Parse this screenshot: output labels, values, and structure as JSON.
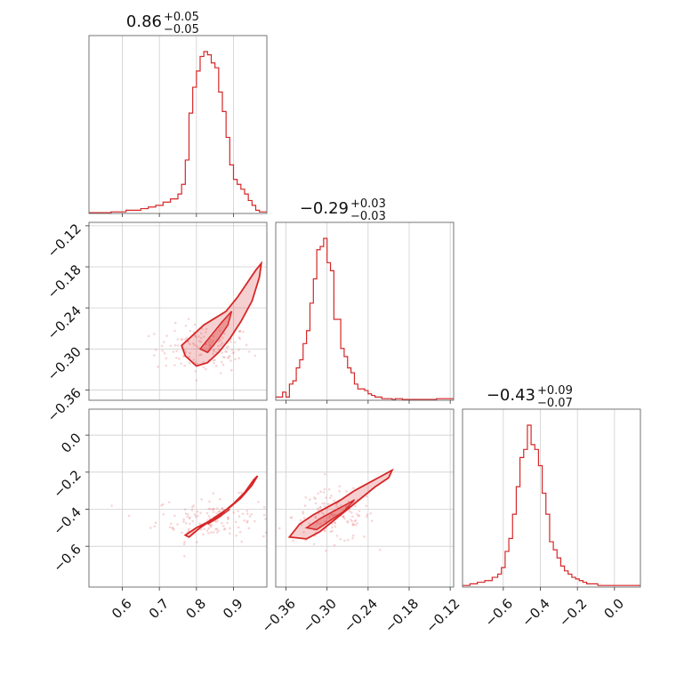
{
  "chart_data": {
    "type": "corner",
    "color": "#d62728",
    "grid": true,
    "params": [
      {
        "median": "0.86",
        "plus": "+0.05",
        "minus": "−0.05",
        "range": [
          0.51,
          0.99
        ],
        "ticks": [
          0.6,
          0.7,
          0.8,
          0.9
        ],
        "tick_labels": [
          "0.6",
          "0.7",
          "0.8",
          "0.9"
        ],
        "hist_x": [
          0.51,
          0.53,
          0.55,
          0.57,
          0.59,
          0.61,
          0.63,
          0.65,
          0.67,
          0.69,
          0.71,
          0.73,
          0.75,
          0.76,
          0.77,
          0.78,
          0.79,
          0.8,
          0.81,
          0.82,
          0.83,
          0.84,
          0.85,
          0.86,
          0.87,
          0.88,
          0.89,
          0.9,
          0.91,
          0.92,
          0.93,
          0.94,
          0.95,
          0.96,
          0.97,
          0.98,
          0.99
        ],
        "hist_y": [
          0.005,
          0.005,
          0.005,
          0.01,
          0.01,
          0.02,
          0.02,
          0.03,
          0.04,
          0.05,
          0.07,
          0.09,
          0.12,
          0.18,
          0.33,
          0.62,
          0.78,
          0.88,
          0.97,
          1.0,
          0.98,
          0.93,
          0.9,
          0.75,
          0.63,
          0.47,
          0.3,
          0.21,
          0.18,
          0.15,
          0.12,
          0.08,
          0.05,
          0.02,
          0.01,
          0.01
        ]
      },
      {
        "median": "−0.29",
        "plus": "+0.03",
        "minus": "−0.03",
        "range": [
          -0.375,
          -0.115
        ],
        "ticks": [
          -0.36,
          -0.3,
          -0.24,
          -0.18,
          -0.12
        ],
        "tick_labels": [
          "−0.36",
          "−0.30",
          "−0.24",
          "−0.18",
          "−0.12"
        ],
        "hist_x": [
          -0.375,
          -0.37,
          -0.365,
          -0.36,
          -0.355,
          -0.35,
          -0.345,
          -0.34,
          -0.335,
          -0.33,
          -0.325,
          -0.32,
          -0.315,
          -0.31,
          -0.305,
          -0.3,
          -0.295,
          -0.29,
          -0.285,
          -0.28,
          -0.275,
          -0.27,
          -0.265,
          -0.26,
          -0.255,
          -0.25,
          -0.245,
          -0.24,
          -0.235,
          -0.23,
          -0.225,
          -0.22,
          -0.215,
          -0.21,
          -0.205,
          -0.2,
          -0.19,
          -0.18,
          -0.17,
          -0.16,
          -0.15,
          -0.14,
          -0.13,
          -0.12,
          -0.115
        ],
        "hist_y": [
          0.02,
          0.02,
          0.05,
          0.02,
          0.1,
          0.12,
          0.2,
          0.25,
          0.35,
          0.43,
          0.6,
          0.75,
          0.93,
          0.95,
          1.0,
          0.85,
          0.8,
          0.5,
          0.5,
          0.32,
          0.27,
          0.2,
          0.17,
          0.1,
          0.07,
          0.07,
          0.06,
          0.04,
          0.03,
          0.02,
          0.02,
          0.01,
          0.01,
          0.01,
          0.005,
          0.01,
          0.005,
          0.005,
          0.005,
          0.005,
          0.005,
          0.01,
          0.01,
          0.01
        ]
      },
      {
        "median": "−0.43",
        "plus": "+0.09",
        "minus": "−0.07",
        "range": [
          -0.82,
          0.14
        ],
        "ticks": [
          -0.6,
          -0.4,
          -0.2,
          0.0
        ],
        "tick_labels": [
          "−0.6",
          "−0.4",
          "−0.2",
          "0.0"
        ],
        "hist_x": [
          -0.82,
          -0.78,
          -0.74,
          -0.7,
          -0.66,
          -0.63,
          -0.61,
          -0.59,
          -0.57,
          -0.55,
          -0.53,
          -0.51,
          -0.49,
          -0.47,
          -0.45,
          -0.43,
          -0.41,
          -0.39,
          -0.37,
          -0.35,
          -0.33,
          -0.31,
          -0.29,
          -0.27,
          -0.25,
          -0.23,
          -0.21,
          -0.19,
          -0.17,
          -0.15,
          -0.13,
          -0.11,
          -0.09,
          -0.07,
          -0.05,
          -0.03,
          -0.01,
          0.02,
          0.06,
          0.1,
          0.14
        ],
        "hist_y": [
          0.01,
          0.02,
          0.03,
          0.04,
          0.06,
          0.08,
          0.12,
          0.22,
          0.3,
          0.45,
          0.62,
          0.8,
          0.85,
          1.0,
          0.88,
          0.85,
          0.75,
          0.58,
          0.45,
          0.28,
          0.23,
          0.18,
          0.13,
          0.1,
          0.08,
          0.06,
          0.05,
          0.04,
          0.03,
          0.02,
          0.02,
          0.02,
          0.01,
          0.01,
          0.01,
          0.01,
          0.01,
          0.01,
          0.01,
          0.01
        ]
      }
    ],
    "pairs": [
      {
        "row": 1,
        "col": 0,
        "contour_outer": [
          [
            0.76,
            -0.295
          ],
          [
            0.79,
            -0.28
          ],
          [
            0.82,
            -0.265
          ],
          [
            0.85,
            -0.255
          ],
          [
            0.88,
            -0.245
          ],
          [
            0.91,
            -0.225
          ],
          [
            0.935,
            -0.205
          ],
          [
            0.96,
            -0.185
          ],
          [
            0.975,
            -0.175
          ],
          [
            0.97,
            -0.195
          ],
          [
            0.95,
            -0.23
          ],
          [
            0.92,
            -0.26
          ],
          [
            0.89,
            -0.285
          ],
          [
            0.86,
            -0.305
          ],
          [
            0.83,
            -0.32
          ],
          [
            0.8,
            -0.325
          ],
          [
            0.77,
            -0.31
          ]
        ],
        "contour_inner": [
          [
            0.81,
            -0.3
          ],
          [
            0.84,
            -0.28
          ],
          [
            0.87,
            -0.26
          ],
          [
            0.895,
            -0.245
          ],
          [
            0.885,
            -0.265
          ],
          [
            0.86,
            -0.285
          ],
          [
            0.83,
            -0.305
          ]
        ],
        "scatter_center": [
          0.82,
          -0.3
        ],
        "scatter_spread": [
          0.13,
          0.035
        ]
      },
      {
        "row": 2,
        "col": 0,
        "contour_outer": [
          [
            0.77,
            -0.54
          ],
          [
            0.8,
            -0.5
          ],
          [
            0.83,
            -0.47
          ],
          [
            0.86,
            -0.43
          ],
          [
            0.89,
            -0.39
          ],
          [
            0.92,
            -0.34
          ],
          [
            0.95,
            -0.27
          ],
          [
            0.965,
            -0.22
          ],
          [
            0.955,
            -0.24
          ],
          [
            0.93,
            -0.31
          ],
          [
            0.9,
            -0.37
          ],
          [
            0.87,
            -0.42
          ],
          [
            0.84,
            -0.46
          ],
          [
            0.81,
            -0.5
          ],
          [
            0.78,
            -0.55
          ]
        ],
        "contour_inner": [
          [
            0.83,
            -0.48
          ],
          [
            0.86,
            -0.445
          ],
          [
            0.89,
            -0.4
          ],
          [
            0.88,
            -0.415
          ],
          [
            0.85,
            -0.455
          ]
        ],
        "scatter_center": [
          0.85,
          -0.45
        ],
        "scatter_spread": [
          0.16,
          0.12
        ]
      },
      {
        "row": 2,
        "col": 1,
        "contour_outer": [
          [
            -0.355,
            -0.55
          ],
          [
            -0.34,
            -0.48
          ],
          [
            -0.32,
            -0.43
          ],
          [
            -0.3,
            -0.39
          ],
          [
            -0.28,
            -0.35
          ],
          [
            -0.26,
            -0.3
          ],
          [
            -0.24,
            -0.26
          ],
          [
            -0.22,
            -0.22
          ],
          [
            -0.205,
            -0.19
          ],
          [
            -0.21,
            -0.23
          ],
          [
            -0.23,
            -0.28
          ],
          [
            -0.25,
            -0.34
          ],
          [
            -0.27,
            -0.4
          ],
          [
            -0.29,
            -0.46
          ],
          [
            -0.31,
            -0.52
          ],
          [
            -0.33,
            -0.56
          ]
        ],
        "contour_inner": [
          [
            -0.33,
            -0.5
          ],
          [
            -0.31,
            -0.45
          ],
          [
            -0.29,
            -0.41
          ],
          [
            -0.27,
            -0.37
          ],
          [
            -0.26,
            -0.35
          ],
          [
            -0.275,
            -0.41
          ],
          [
            -0.295,
            -0.46
          ],
          [
            -0.315,
            -0.51
          ]
        ],
        "scatter_center": [
          -0.29,
          -0.44
        ],
        "scatter_spread": [
          0.06,
          0.14
        ]
      }
    ]
  }
}
